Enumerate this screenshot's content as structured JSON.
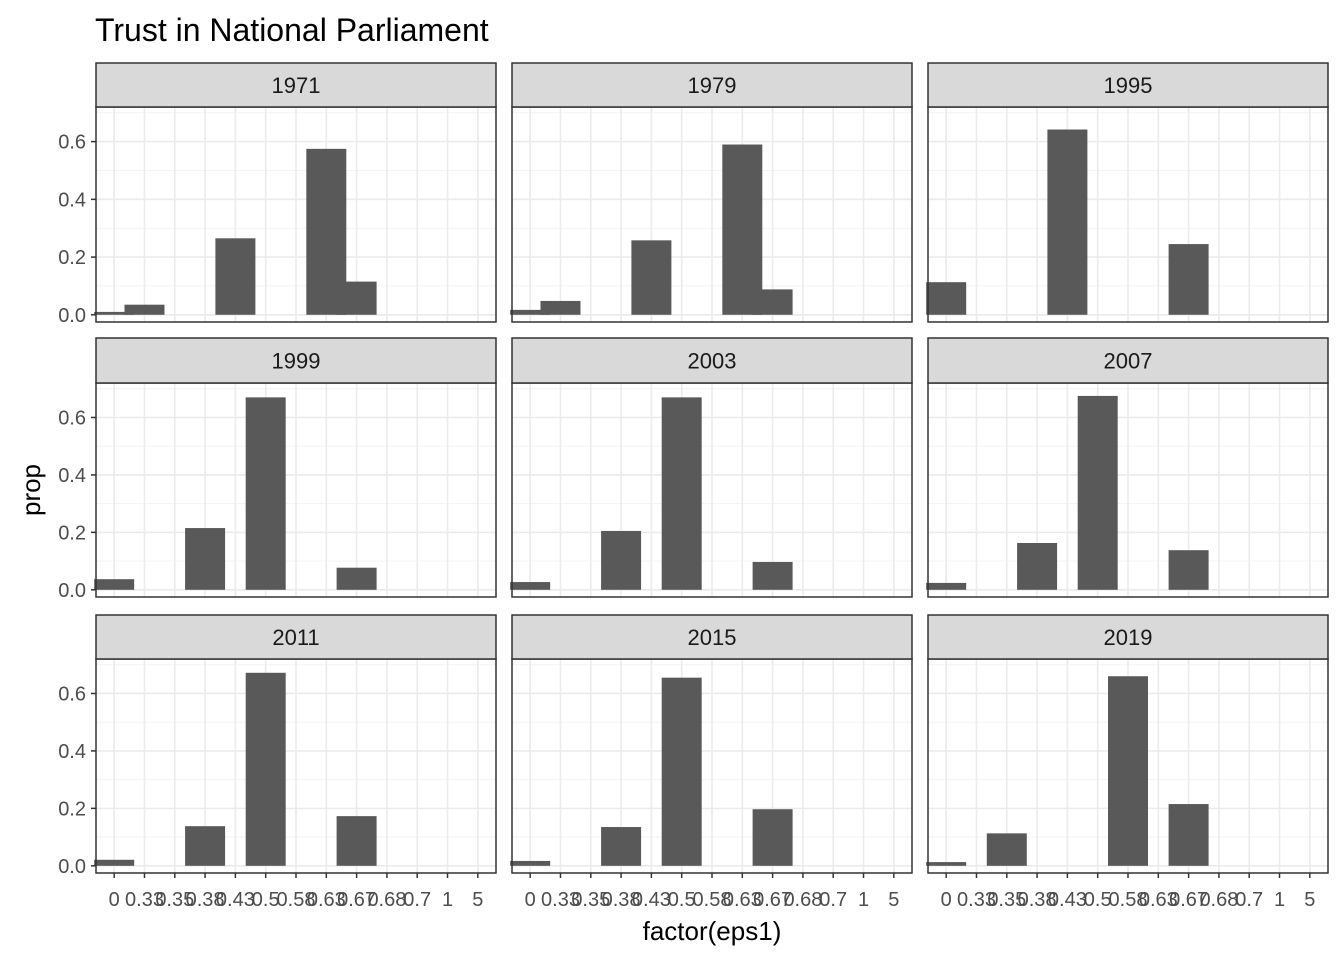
{
  "chart_data": {
    "type": "bar",
    "title": "Trust in National Parliament",
    "xlabel": "factor(eps1)",
    "ylabel": "prop",
    "ylim": [
      0,
      0.7
    ],
    "y_ticks": [
      "0.0",
      "0.2",
      "0.4",
      "0.6"
    ],
    "x_tick_labels": [
      "0",
      "0.33",
      "0.35",
      "0.38",
      "0.43",
      "0.5",
      "0.58",
      "0.63",
      "0.67",
      "0.68",
      "0.7",
      "1",
      "5"
    ],
    "grid": true,
    "colors": {
      "bar": "#595959",
      "strip_bg": "#d9d9d9",
      "grid_major": "#ebebeb",
      "grid_minor": "#f3f3f3",
      "panel_border": "#333333"
    },
    "panels": [
      {
        "label": "1971",
        "bars": [
          {
            "x": 0,
            "value": 0.01
          },
          {
            "x": 1,
            "value": 0.035
          },
          {
            "x": 4,
            "value": 0.265
          },
          {
            "x": 7,
            "value": 0.575
          },
          {
            "x": 8,
            "value": 0.115
          }
        ]
      },
      {
        "label": "1979",
        "bars": [
          {
            "x": 0,
            "value": 0.017
          },
          {
            "x": 1,
            "value": 0.048
          },
          {
            "x": 4,
            "value": 0.258
          },
          {
            "x": 7,
            "value": 0.59
          },
          {
            "x": 8,
            "value": 0.088
          }
        ]
      },
      {
        "label": "1995",
        "bars": [
          {
            "x": 0,
            "value": 0.113
          },
          {
            "x": 4,
            "value": 0.642
          },
          {
            "x": 8,
            "value": 0.245
          }
        ]
      },
      {
        "label": "1999",
        "bars": [
          {
            "x": 0,
            "value": 0.037
          },
          {
            "x": 3,
            "value": 0.215
          },
          {
            "x": 5,
            "value": 0.67
          },
          {
            "x": 8,
            "value": 0.077
          }
        ]
      },
      {
        "label": "2003",
        "bars": [
          {
            "x": 0,
            "value": 0.027
          },
          {
            "x": 3,
            "value": 0.205
          },
          {
            "x": 5,
            "value": 0.67
          },
          {
            "x": 8,
            "value": 0.097
          }
        ]
      },
      {
        "label": "2007",
        "bars": [
          {
            "x": 0,
            "value": 0.024
          },
          {
            "x": 3,
            "value": 0.163
          },
          {
            "x": 5,
            "value": 0.675
          },
          {
            "x": 8,
            "value": 0.138
          }
        ]
      },
      {
        "label": "2011",
        "bars": [
          {
            "x": 0,
            "value": 0.021
          },
          {
            "x": 3,
            "value": 0.138
          },
          {
            "x": 5,
            "value": 0.672
          },
          {
            "x": 8,
            "value": 0.173
          }
        ]
      },
      {
        "label": "2015",
        "bars": [
          {
            "x": 0,
            "value": 0.017
          },
          {
            "x": 3,
            "value": 0.135
          },
          {
            "x": 5,
            "value": 0.655
          },
          {
            "x": 8,
            "value": 0.197
          }
        ]
      },
      {
        "label": "2019",
        "bars": [
          {
            "x": 0,
            "value": 0.013
          },
          {
            "x": 2,
            "value": 0.113
          },
          {
            "x": 6,
            "value": 0.66
          },
          {
            "x": 8,
            "value": 0.215
          }
        ]
      }
    ]
  }
}
